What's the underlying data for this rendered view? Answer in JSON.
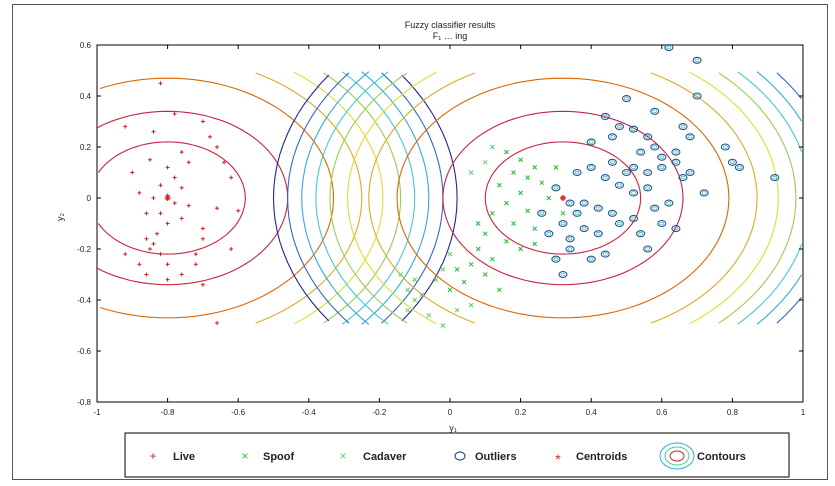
{
  "chart_data": {
    "type": "scatter",
    "title": "Fuzzy classifier results",
    "subtitle": "F₁ … ing",
    "xlabel": "y₁",
    "ylabel": "y₂",
    "xlim": [
      -1,
      1
    ],
    "ylim": [
      -0.8,
      0.6
    ],
    "xticks": [
      "-1",
      "-0.8",
      "-0.6",
      "-0.4",
      "-0.2",
      "0",
      "0.2",
      "0.4",
      "0.6",
      "0.8",
      "1"
    ],
    "yticks": [
      "-0.8",
      "-0.6",
      "-0.4",
      "-0.2",
      "0",
      "0.2",
      "0.4",
      "0.6"
    ],
    "grid": false,
    "legend_placement": "bottom",
    "series": [
      {
        "name": "Live",
        "marker": "plus",
        "color": "#cc2222",
        "points": [
          [
            -0.82,
            0.45
          ],
          [
            -0.78,
            0.33
          ],
          [
            -0.84,
            0.26
          ],
          [
            -0.92,
            0.28
          ],
          [
            -0.85,
            0.15
          ],
          [
            -0.8,
            0.12
          ],
          [
            -0.76,
            0.18
          ],
          [
            -0.74,
            0.14
          ],
          [
            -0.78,
            0.08
          ],
          [
            -0.82,
            0.05
          ],
          [
            -0.76,
            0.04
          ],
          [
            -0.8,
            0.01
          ],
          [
            -0.84,
            0.0
          ],
          [
            -0.78,
            -0.02
          ],
          [
            -0.74,
            -0.03
          ],
          [
            -0.82,
            -0.06
          ],
          [
            -0.86,
            -0.06
          ],
          [
            -0.8,
            -0.1
          ],
          [
            -0.83,
            -0.14
          ],
          [
            -0.86,
            -0.16
          ],
          [
            -0.84,
            -0.18
          ],
          [
            -0.82,
            -0.22
          ],
          [
            -0.85,
            -0.2
          ],
          [
            -0.8,
            -0.26
          ],
          [
            -0.7,
            -0.12
          ],
          [
            -0.7,
            -0.16
          ],
          [
            -0.72,
            -0.22
          ],
          [
            -0.72,
            -0.26
          ],
          [
            -0.88,
            0.02
          ],
          [
            -0.66,
            0.2
          ],
          [
            -0.64,
            0.14
          ],
          [
            -0.7,
            0.3
          ],
          [
            -0.9,
            0.1
          ],
          [
            -0.76,
            -0.08
          ],
          [
            -0.66,
            -0.04
          ],
          [
            -0.92,
            -0.22
          ],
          [
            -0.88,
            -0.26
          ],
          [
            -0.86,
            -0.3
          ],
          [
            -0.8,
            -0.32
          ],
          [
            -0.76,
            -0.3
          ],
          [
            -0.7,
            -0.34
          ],
          [
            -0.62,
            -0.2
          ],
          [
            -0.6,
            -0.05
          ],
          [
            -0.62,
            0.08
          ],
          [
            -0.68,
            0.24
          ],
          [
            -0.66,
            -0.49
          ]
        ]
      },
      {
        "name": "Spoof",
        "marker": "cross",
        "color": "#22bb33",
        "points": [
          [
            0.16,
            0.18
          ],
          [
            0.2,
            0.15
          ],
          [
            0.24,
            0.12
          ],
          [
            0.18,
            0.1
          ],
          [
            0.22,
            0.08
          ],
          [
            0.26,
            0.06
          ],
          [
            0.14,
            0.05
          ],
          [
            0.2,
            0.02
          ],
          [
            0.28,
            0.0
          ],
          [
            0.16,
            -0.02
          ],
          [
            0.22,
            -0.05
          ],
          [
            0.12,
            -0.06
          ],
          [
            0.18,
            -0.1
          ],
          [
            0.24,
            -0.12
          ],
          [
            0.1,
            -0.14
          ],
          [
            0.16,
            -0.17
          ],
          [
            0.08,
            -0.2
          ],
          [
            0.12,
            -0.24
          ],
          [
            0.06,
            -0.26
          ],
          [
            0.02,
            -0.28
          ],
          [
            0.04,
            -0.33
          ],
          [
            0.0,
            -0.36
          ],
          [
            0.1,
            -0.3
          ],
          [
            0.14,
            -0.36
          ],
          [
            0.24,
            -0.18
          ],
          [
            0.3,
            0.12
          ],
          [
            0.32,
            -0.06
          ],
          [
            0.2,
            -0.2
          ],
          [
            0.08,
            -0.1
          ]
        ]
      },
      {
        "name": "Cadaver",
        "marker": "cross",
        "color": "#66cc66",
        "points": [
          [
            -0.14,
            -0.3
          ],
          [
            -0.12,
            -0.36
          ],
          [
            -0.1,
            -0.4
          ],
          [
            -0.12,
            -0.44
          ],
          [
            -0.06,
            -0.46
          ],
          [
            -0.08,
            -0.38
          ],
          [
            -0.04,
            -0.32
          ],
          [
            -0.02,
            -0.28
          ],
          [
            0.0,
            -0.22
          ],
          [
            -0.02,
            -0.5
          ],
          [
            0.02,
            -0.44
          ],
          [
            0.06,
            -0.42
          ],
          [
            -0.1,
            -0.32
          ],
          [
            0.06,
            0.1
          ],
          [
            0.1,
            0.14
          ],
          [
            0.12,
            0.2
          ]
        ]
      },
      {
        "name": "Outliers",
        "marker": "circle",
        "color": "#225599",
        "points": [
          [
            0.62,
            0.59
          ],
          [
            0.7,
            0.54
          ],
          [
            0.5,
            0.39
          ],
          [
            0.58,
            0.34
          ],
          [
            0.44,
            0.32
          ],
          [
            0.48,
            0.28
          ],
          [
            0.52,
            0.27
          ],
          [
            0.56,
            0.24
          ],
          [
            0.58,
            0.2
          ],
          [
            0.46,
            0.24
          ],
          [
            0.4,
            0.22
          ],
          [
            0.54,
            0.18
          ],
          [
            0.6,
            0.16
          ],
          [
            0.64,
            0.14
          ],
          [
            0.52,
            0.12
          ],
          [
            0.56,
            0.1
          ],
          [
            0.6,
            0.12
          ],
          [
            0.44,
            0.08
          ],
          [
            0.4,
            0.12
          ],
          [
            0.36,
            0.1
          ],
          [
            0.48,
            0.05
          ],
          [
            0.52,
            0.02
          ],
          [
            0.56,
            0.04
          ],
          [
            0.58,
            -0.04
          ],
          [
            0.62,
            -0.02
          ],
          [
            0.66,
            0.08
          ],
          [
            0.64,
            0.18
          ],
          [
            0.68,
            0.24
          ],
          [
            0.66,
            0.28
          ],
          [
            0.7,
            0.4
          ],
          [
            0.78,
            0.2
          ],
          [
            0.8,
            0.14
          ],
          [
            0.82,
            0.12
          ],
          [
            0.34,
            -0.02
          ],
          [
            0.36,
            -0.06
          ],
          [
            0.32,
            -0.1
          ],
          [
            0.28,
            -0.14
          ],
          [
            0.34,
            -0.16
          ],
          [
            0.38,
            -0.12
          ],
          [
            0.42,
            -0.14
          ],
          [
            0.48,
            -0.1
          ],
          [
            0.52,
            -0.08
          ],
          [
            0.54,
            -0.14
          ],
          [
            0.56,
            -0.2
          ],
          [
            0.44,
            -0.22
          ],
          [
            0.4,
            -0.24
          ],
          [
            0.34,
            -0.2
          ],
          [
            0.3,
            -0.24
          ],
          [
            0.32,
            -0.3
          ],
          [
            0.38,
            -0.02
          ],
          [
            0.42,
            -0.04
          ],
          [
            0.46,
            -0.06
          ],
          [
            0.3,
            0.04
          ],
          [
            0.26,
            -0.06
          ],
          [
            0.6,
            -0.1
          ],
          [
            0.64,
            -0.12
          ],
          [
            0.68,
            0.1
          ],
          [
            0.72,
            0.02
          ],
          [
            0.92,
            0.08
          ],
          [
            0.46,
            0.14
          ],
          [
            0.5,
            0.1
          ]
        ]
      },
      {
        "name": "Centroids",
        "marker": "star",
        "color": "#dd2222",
        "points": [
          [
            -0.8,
            0.0
          ],
          [
            0.32,
            0.0
          ]
        ]
      }
    ],
    "contours": {
      "name": "Contours",
      "centers": [
        [
          -0.8,
          0.0
        ],
        [
          0.32,
          0.0
        ]
      ],
      "y_extent": [
        -0.5,
        0.5
      ],
      "levels": [
        {
          "r": 0.22,
          "color": "#cc2244"
        },
        {
          "r": 0.34,
          "color": "#cc2244"
        },
        {
          "r": 0.47,
          "color": "#dd6600"
        },
        {
          "r": 0.55,
          "color": "#ddaa22"
        },
        {
          "r": 0.61,
          "color": "#dddd33"
        },
        {
          "r": 0.66,
          "color": "#99cc55"
        },
        {
          "r": 0.7,
          "color": "#44cccc"
        },
        {
          "r": 0.74,
          "color": "#33aadd"
        },
        {
          "r": 0.78,
          "color": "#3366cc"
        },
        {
          "r": 0.82,
          "color": "#222299"
        }
      ]
    }
  },
  "legend": {
    "items": [
      {
        "label": "Live",
        "symbol": "+",
        "color": "#cc2222"
      },
      {
        "label": "Spoof",
        "symbol": "×",
        "color": "#22bb33"
      },
      {
        "label": "Cadaver",
        "symbol": "×",
        "color": "#66cc66"
      },
      {
        "label": "Outliers",
        "symbol": "circle-icon",
        "color": "#225599"
      },
      {
        "label": "Centroids",
        "symbol": "*",
        "color": "#dd2222"
      },
      {
        "label": "Contours",
        "symbol": "contour-icon",
        "color": "#cc2244"
      }
    ]
  }
}
